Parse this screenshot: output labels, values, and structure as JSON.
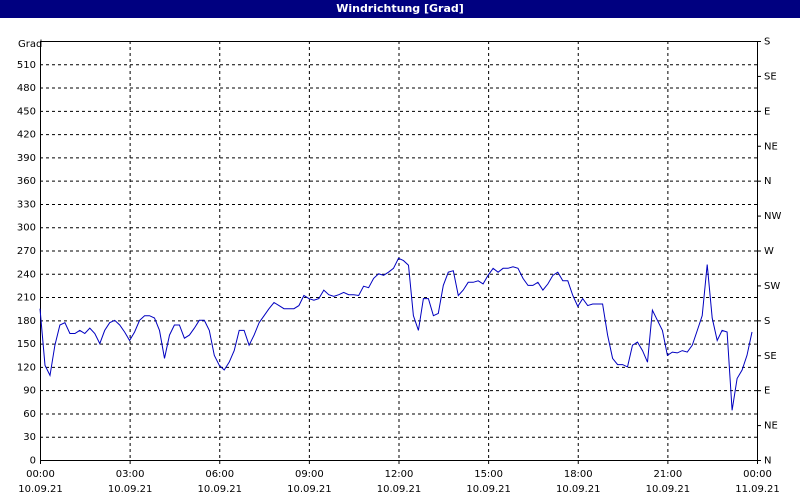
{
  "chart_data": {
    "type": "line",
    "title": "Windrichtung [Grad]",
    "ylabel": "Grad",
    "ylim": [
      0,
      540
    ],
    "yticks": [
      0,
      30,
      60,
      90,
      120,
      150,
      180,
      210,
      240,
      270,
      300,
      330,
      360,
      390,
      420,
      450,
      480,
      510
    ],
    "y2lim": [
      0,
      540
    ],
    "y2ticks": [
      {
        "value": 0,
        "label": "N"
      },
      {
        "value": 45,
        "label": "NE"
      },
      {
        "value": 90,
        "label": "E"
      },
      {
        "value": 135,
        "label": "SE"
      },
      {
        "value": 180,
        "label": "S"
      },
      {
        "value": 225,
        "label": "SW"
      },
      {
        "value": 270,
        "label": "W"
      },
      {
        "value": 315,
        "label": "NW"
      },
      {
        "value": 360,
        "label": "N"
      },
      {
        "value": 405,
        "label": "NE"
      },
      {
        "value": 450,
        "label": "E"
      },
      {
        "value": 495,
        "label": "SE"
      },
      {
        "value": 540,
        "label": "S"
      }
    ],
    "xlim": [
      0,
      1440
    ],
    "xticks": [
      {
        "value": 0,
        "label": "00:00"
      },
      {
        "value": 180,
        "label": "03:00"
      },
      {
        "value": 360,
        "label": "06:00"
      },
      {
        "value": 540,
        "label": "09:00"
      },
      {
        "value": 720,
        "label": "12:00"
      },
      {
        "value": 900,
        "label": "15:00"
      },
      {
        "value": 1080,
        "label": "18:00"
      },
      {
        "value": 1260,
        "label": "21:00"
      },
      {
        "value": 1440,
        "label": "00:00"
      }
    ],
    "xtick_dates": [
      "10.09.21",
      "10.09.21",
      "10.09.21",
      "10.09.21",
      "10.09.21",
      "10.09.21",
      "10.09.21",
      "10.09.21",
      "11.09.21"
    ],
    "grid": true,
    "x": [
      0,
      10,
      20,
      30,
      40,
      50,
      60,
      70,
      80,
      90,
      100,
      110,
      120,
      130,
      140,
      150,
      160,
      170,
      180,
      190,
      200,
      210,
      220,
      230,
      240,
      250,
      260,
      270,
      280,
      290,
      300,
      310,
      320,
      330,
      340,
      350,
      360,
      370,
      380,
      390,
      400,
      410,
      420,
      430,
      440,
      450,
      460,
      470,
      480,
      490,
      500,
      510,
      520,
      530,
      540,
      550,
      560,
      570,
      580,
      590,
      600,
      610,
      620,
      630,
      640,
      650,
      660,
      670,
      680,
      690,
      700,
      710,
      720,
      730,
      740,
      750,
      760,
      770,
      780,
      790,
      800,
      810,
      820,
      830,
      840,
      850,
      860,
      870,
      880,
      890,
      900,
      910,
      920,
      930,
      940,
      950,
      960,
      970,
      980,
      990,
      1000,
      1010,
      1020,
      1030,
      1040,
      1050,
      1060,
      1070,
      1080,
      1090,
      1100,
      1110,
      1120,
      1130,
      1140,
      1150,
      1160,
      1170,
      1180,
      1190,
      1200,
      1210,
      1220,
      1230,
      1240,
      1250,
      1260,
      1270,
      1280,
      1290,
      1300,
      1310,
      1320,
      1330,
      1340,
      1350,
      1360,
      1370,
      1380,
      1390,
      1400,
      1410,
      1420,
      1430
    ],
    "series": [
      {
        "color": "#0000c0",
        "values": [
          195,
          122,
          109,
          148,
          174,
          177,
          163,
          163,
          167,
          163,
          170,
          163,
          150,
          167,
          177,
          180,
          174,
          165,
          154,
          165,
          180,
          186,
          186,
          183,
          167,
          131,
          161,
          174,
          174,
          157,
          161,
          170,
          180,
          180,
          167,
          135,
          122,
          116,
          126,
          141,
          167,
          167,
          148,
          161,
          177,
          186,
          195,
          203,
          199,
          195,
          195,
          195,
          199,
          212,
          208,
          206,
          208,
          219,
          213,
          211,
          213,
          216,
          213,
          213,
          212,
          224,
          222,
          234,
          240,
          238,
          242,
          247,
          260,
          257,
          251,
          186,
          167,
          208,
          208,
          186,
          189,
          225,
          242,
          244,
          212,
          219,
          229,
          229,
          231,
          227,
          238,
          247,
          242,
          247,
          247,
          249,
          247,
          234,
          225,
          225,
          229,
          219,
          227,
          238,
          242,
          231,
          231,
          212,
          198,
          208,
          199,
          201,
          201,
          201,
          161,
          131,
          123,
          123,
          120,
          148,
          152,
          141,
          126,
          193,
          180,
          167,
          135,
          139,
          138,
          141,
          139,
          148,
          167,
          186,
          252,
          183,
          154,
          167,
          165,
          64,
          105,
          116,
          135,
          165
        ]
      }
    ]
  }
}
